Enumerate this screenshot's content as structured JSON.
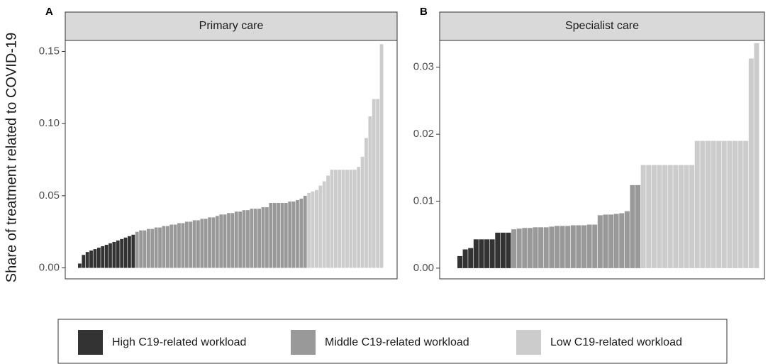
{
  "y_label": "Share of treatment related to COVID-19",
  "legend": {
    "position": "bottom",
    "items": [
      {
        "name": "High C19-related workload",
        "color": "#333333"
      },
      {
        "name": "Middle C19-related workload",
        "color": "#999999"
      },
      {
        "name": "Low C19-related workload",
        "color": "#cccccc"
      }
    ]
  },
  "chart_data": [
    {
      "type": "bar",
      "panel_label": "A",
      "title": "Primary care",
      "ylim": [
        -0.0076,
        0.1576
      ],
      "yticks": [
        {
          "value": 0,
          "label": "0.00"
        },
        {
          "value": 0.05,
          "label": "0.05"
        },
        {
          "value": 0.1,
          "label": "0.10"
        },
        {
          "value": 0.15,
          "label": "0.15"
        }
      ],
      "series": [
        {
          "values": [
            0.003,
            0.009,
            0.011,
            0.012,
            0.013,
            0.014,
            0.015,
            0.016,
            0.017,
            0.018,
            0.019,
            0.02,
            0.021,
            0.022,
            0.023
          ]
        },
        {
          "values": [
            0.025,
            0.026,
            0.026,
            0.027,
            0.027,
            0.028,
            0.028,
            0.029,
            0.029,
            0.03,
            0.03,
            0.031,
            0.031,
            0.032,
            0.032,
            0.033,
            0.033,
            0.034,
            0.034,
            0.035,
            0.035,
            0.036,
            0.037,
            0.037,
            0.038,
            0.038,
            0.039,
            0.039,
            0.04,
            0.04,
            0.041,
            0.041,
            0.041,
            0.042,
            0.042,
            0.045,
            0.045,
            0.045,
            0.045,
            0.045,
            0.046,
            0.046,
            0.047,
            0.048,
            0.05
          ]
        },
        {
          "values": [
            0.052,
            0.053,
            0.054,
            0.057,
            0.06,
            0.064,
            0.068,
            0.068,
            0.068,
            0.068,
            0.068,
            0.068,
            0.068,
            0.07,
            0.077,
            0.09,
            0.105,
            0.117,
            0.117,
            0.155
          ]
        }
      ]
    },
    {
      "type": "bar",
      "panel_label": "B",
      "title": "Specialist care",
      "ylim": [
        -0.0016,
        0.034
      ],
      "yticks": [
        {
          "value": 0,
          "label": "0.00"
        },
        {
          "value": 0.01,
          "label": "0.01"
        },
        {
          "value": 0.02,
          "label": "0.02"
        },
        {
          "value": 0.03,
          "label": "0.03"
        }
      ],
      "series": [
        {
          "values": [
            0.0018,
            0.0028,
            0.003,
            0.0043,
            0.0043,
            0.0043,
            0.0043,
            0.0053,
            0.0053,
            0.0053
          ]
        },
        {
          "values": [
            0.0058,
            0.0059,
            0.006,
            0.006,
            0.0061,
            0.0061,
            0.0061,
            0.0062,
            0.0063,
            0.0063,
            0.0063,
            0.0064,
            0.0064,
            0.0064,
            0.0065,
            0.0065,
            0.0079,
            0.008,
            0.008,
            0.0081,
            0.0082,
            0.0085,
            0.0124,
            0.0124
          ]
        },
        {
          "values": [
            0.0154,
            0.0154,
            0.0154,
            0.0154,
            0.0154,
            0.0154,
            0.0154,
            0.0154,
            0.0154,
            0.0154,
            0.019,
            0.019,
            0.019,
            0.019,
            0.019,
            0.019,
            0.019,
            0.019,
            0.019,
            0.019,
            0.0313,
            0.0336
          ]
        }
      ]
    }
  ]
}
